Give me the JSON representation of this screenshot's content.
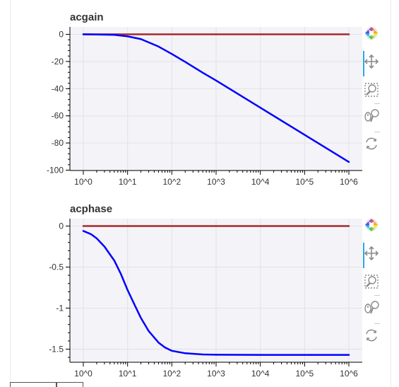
{
  "chart_data": [
    {
      "type": "line",
      "title": "acgain",
      "x_scale": "log",
      "xlim": [
        1,
        1000000
      ],
      "ylim": [
        -100,
        0
      ],
      "x_tick_labels": [
        "10^0",
        "10^1",
        "10^2",
        "10^3",
        "10^4",
        "10^5",
        "10^6"
      ],
      "y_ticks": [
        0,
        -20,
        -40,
        -60,
        -80,
        -100
      ],
      "y_tick_labels": [
        "0",
        "-20",
        "-40",
        "-60",
        "-80",
        "-100"
      ],
      "grid": true,
      "series": [
        {
          "color": "#a52a2a",
          "x": [
            1,
            1000000
          ],
          "y": [
            0,
            0
          ]
        },
        {
          "color": "#0000ff",
          "x": [
            1,
            2,
            5,
            10,
            20,
            50,
            100,
            200,
            500,
            1000,
            10000,
            100000,
            1000000
          ],
          "y": [
            0,
            -0.1,
            -0.4,
            -1.5,
            -3.5,
            -9,
            -14.5,
            -20.3,
            -28.3,
            -34,
            -54,
            -74,
            -94
          ]
        }
      ]
    },
    {
      "type": "line",
      "title": "acphase",
      "x_scale": "log",
      "xlim": [
        1,
        1000000
      ],
      "ylim": [
        -1.6,
        0
      ],
      "x_tick_labels": [
        "10^0",
        "10^1",
        "10^2",
        "10^3",
        "10^4",
        "10^5",
        "10^6"
      ],
      "y_ticks": [
        0,
        -0.5,
        -1,
        -1.5
      ],
      "y_tick_labels": [
        "0",
        "-0.5",
        "-1",
        "-1.5"
      ],
      "grid": true,
      "series": [
        {
          "color": "#a52a2a",
          "x": [
            1,
            1000000
          ],
          "y": [
            0,
            0
          ]
        },
        {
          "color": "#0000ff",
          "x": [
            1,
            1.5,
            2,
            3,
            5,
            7,
            10,
            15,
            20,
            30,
            50,
            70,
            100,
            200,
            500,
            1000,
            10000,
            100000,
            1000000
          ],
          "y": [
            -0.06,
            -0.1,
            -0.15,
            -0.25,
            -0.42,
            -0.58,
            -0.78,
            -0.98,
            -1.12,
            -1.28,
            -1.42,
            -1.48,
            -1.52,
            -1.55,
            -1.565,
            -1.568,
            -1.57,
            -1.57,
            -1.57
          ]
        }
      ]
    }
  ],
  "toolbar": {
    "tools": [
      {
        "icon": "bokeh-logo-icon"
      },
      {
        "icon": "pan-icon"
      },
      {
        "icon": "box-zoom-icon"
      },
      {
        "icon": "wheel-zoom-icon"
      },
      {
        "icon": "reset-icon"
      }
    ]
  }
}
